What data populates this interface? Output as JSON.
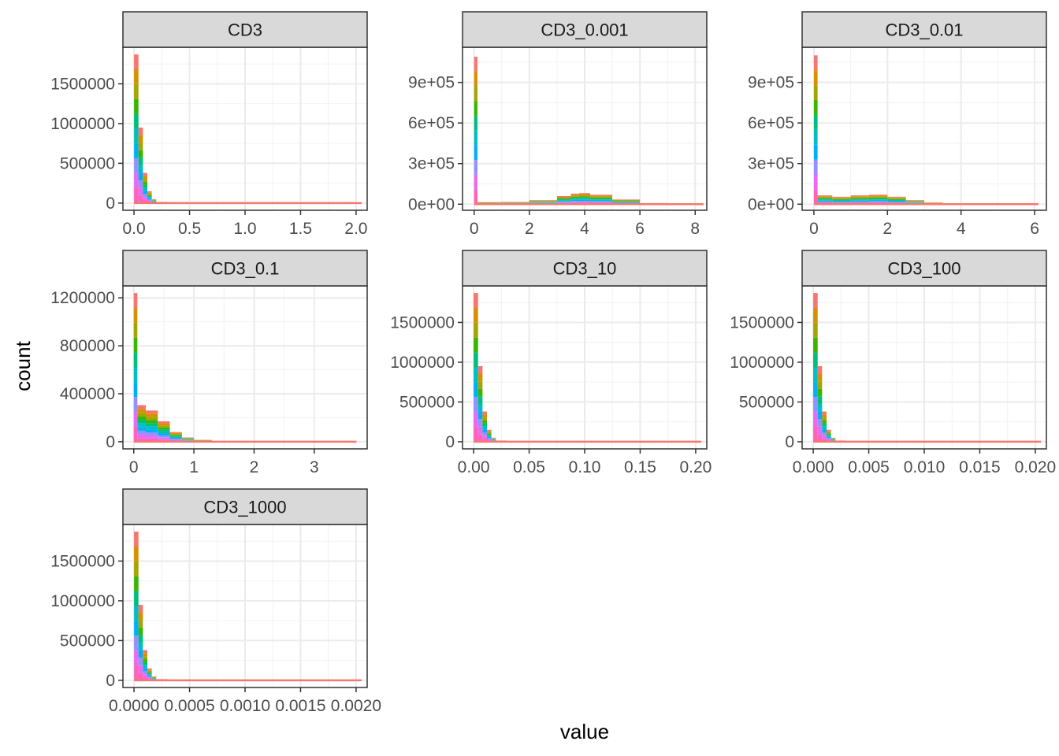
{
  "figure": {
    "xlabel": "value",
    "ylabel": "count",
    "strip_fill": "#d9d9d9",
    "series_colors": [
      "#f8766d",
      "#d89000",
      "#a3a500",
      "#39b600",
      "#00bf7d",
      "#00bfc4",
      "#00b0f6",
      "#9590ff",
      "#e76bf3",
      "#ff62bc"
    ]
  },
  "chart_data": [
    {
      "type": "histogram",
      "title": "CD3",
      "xlim": [
        -0.1,
        2.1
      ],
      "ylim": [
        -90000,
        1960000
      ],
      "xticks": [
        0,
        0.5,
        1,
        1.5,
        2
      ],
      "xtick_labels": [
        "0.0",
        "0.5",
        "1.0",
        "1.5",
        "2.0"
      ],
      "yticks": [
        0,
        500000,
        1000000,
        1500000
      ],
      "ytick_labels": [
        "0",
        "500000",
        "1000000",
        "1500000"
      ],
      "bin_max": 2.05,
      "bins": [
        [
          0,
          1870000
        ],
        [
          0.04,
          950000
        ],
        [
          0.08,
          380000
        ],
        [
          0.12,
          150000
        ],
        [
          0.16,
          50000
        ],
        [
          0.2,
          15000
        ],
        [
          0.3,
          4000
        ],
        [
          0.5,
          800
        ]
      ],
      "spike_width": 0.04
    },
    {
      "type": "histogram",
      "title": "CD3_0.001",
      "xlim": [
        -0.42,
        8.42
      ],
      "ylim": [
        -45000,
        1160000
      ],
      "xticks": [
        0,
        2,
        4,
        6,
        8
      ],
      "xtick_labels": [
        "0",
        "2",
        "4",
        "6",
        "8"
      ],
      "yticks": [
        0,
        300000,
        600000,
        900000
      ],
      "ytick_labels": [
        "0e+00",
        "3e+05",
        "6e+05",
        "9e+05"
      ],
      "bin_max": 8.3,
      "bins": [
        [
          0,
          1090000
        ],
        [
          0.12,
          15000
        ],
        [
          1,
          17000
        ],
        [
          2,
          30000
        ],
        [
          3,
          60000
        ],
        [
          3.5,
          78000
        ],
        [
          3.8,
          82000
        ],
        [
          4.2,
          70000
        ],
        [
          5,
          35000
        ],
        [
          6,
          8000
        ],
        [
          7,
          1500
        ],
        [
          8.3,
          0
        ]
      ],
      "spike_width": 0.14
    },
    {
      "type": "histogram",
      "title": "CD3_0.01",
      "xlim": [
        -0.32,
        6.32
      ],
      "ylim": [
        -45000,
        1160000
      ],
      "xticks": [
        0,
        2,
        4,
        6
      ],
      "xtick_labels": [
        "0",
        "2",
        "4",
        "6"
      ],
      "yticks": [
        0,
        300000,
        600000,
        900000
      ],
      "ytick_labels": [
        "0e+00",
        "3e+05",
        "6e+05",
        "9e+05"
      ],
      "bin_max": 6.1,
      "bins": [
        [
          0,
          1100000
        ],
        [
          0.1,
          65000
        ],
        [
          0.5,
          55000
        ],
        [
          1,
          65000
        ],
        [
          1.5,
          70000
        ],
        [
          2,
          55000
        ],
        [
          2.5,
          30000
        ],
        [
          3,
          12000
        ],
        [
          3.5,
          5000
        ],
        [
          4,
          1200
        ],
        [
          6.1,
          0
        ]
      ],
      "spike_width": 0.1
    },
    {
      "type": "histogram",
      "title": "CD3_0.1",
      "xlim": [
        -0.18,
        3.88
      ],
      "ylim": [
        -60000,
        1300000
      ],
      "xticks": [
        0,
        1,
        2,
        3
      ],
      "xtick_labels": [
        "0",
        "1",
        "2",
        "3"
      ],
      "yticks": [
        0,
        400000,
        800000,
        1200000
      ],
      "ytick_labels": [
        "0",
        "400000",
        "800000",
        "1200000"
      ],
      "bin_max": 3.7,
      "bins": [
        [
          0,
          1240000
        ],
        [
          0.06,
          305000
        ],
        [
          0.2,
          260000
        ],
        [
          0.4,
          170000
        ],
        [
          0.6,
          80000
        ],
        [
          0.8,
          35000
        ],
        [
          1,
          15000
        ],
        [
          1.3,
          5000
        ],
        [
          1.6,
          1500
        ],
        [
          2,
          400
        ],
        [
          3.7,
          0
        ]
      ],
      "spike_width": 0.06
    },
    {
      "type": "histogram",
      "title": "CD3_10",
      "xlim": [
        -0.01,
        0.21
      ],
      "ylim": [
        -90000,
        1960000
      ],
      "xticks": [
        0,
        0.05,
        0.1,
        0.15,
        0.2
      ],
      "xtick_labels": [
        "0.00",
        "0.05",
        "0.10",
        "0.15",
        "0.20"
      ],
      "yticks": [
        0,
        500000,
        1000000,
        1500000
      ],
      "ytick_labels": [
        "0",
        "500000",
        "1000000",
        "1500000"
      ],
      "bin_max": 0.205,
      "bins": [
        [
          0,
          1870000
        ],
        [
          0.004,
          950000
        ],
        [
          0.008,
          380000
        ],
        [
          0.012,
          150000
        ],
        [
          0.016,
          50000
        ],
        [
          0.02,
          15000
        ],
        [
          0.03,
          4000
        ],
        [
          0.05,
          800
        ]
      ],
      "spike_width": 0.004
    },
    {
      "type": "histogram",
      "title": "CD3_100",
      "xlim": [
        -0.001,
        0.021
      ],
      "ylim": [
        -90000,
        1960000
      ],
      "xticks": [
        0,
        0.005,
        0.01,
        0.015,
        0.02
      ],
      "xtick_labels": [
        "0.000",
        "0.005",
        "0.010",
        "0.015",
        "0.020"
      ],
      "yticks": [
        0,
        500000,
        1000000,
        1500000
      ],
      "ytick_labels": [
        "0",
        "500000",
        "1000000",
        "1500000"
      ],
      "bin_max": 0.0205,
      "bins": [
        [
          0,
          1870000
        ],
        [
          0.0004,
          950000
        ],
        [
          0.0008,
          380000
        ],
        [
          0.0012,
          150000
        ],
        [
          0.0016,
          50000
        ],
        [
          0.002,
          15000
        ],
        [
          0.003,
          4000
        ],
        [
          0.005,
          800
        ]
      ],
      "spike_width": 0.0004
    },
    {
      "type": "histogram",
      "title": "CD3_1000",
      "xlim": [
        -0.0001,
        0.0021
      ],
      "ylim": [
        -90000,
        1960000
      ],
      "xticks": [
        0,
        0.0005,
        0.001,
        0.0015,
        0.002
      ],
      "xtick_labels": [
        "0.0000",
        "0.0005",
        "0.0010",
        "0.0015",
        "0.0020"
      ],
      "yticks": [
        0,
        500000,
        1000000,
        1500000
      ],
      "ytick_labels": [
        "0",
        "500000",
        "1000000",
        "1500000"
      ],
      "bin_max": 0.00205,
      "bins": [
        [
          0,
          1870000
        ],
        [
          4e-05,
          950000
        ],
        [
          8e-05,
          380000
        ],
        [
          0.00012,
          150000
        ],
        [
          0.00016,
          50000
        ],
        [
          0.0002,
          15000
        ],
        [
          0.0003,
          4000
        ],
        [
          0.0005,
          800
        ]
      ],
      "spike_width": 4e-05
    }
  ]
}
